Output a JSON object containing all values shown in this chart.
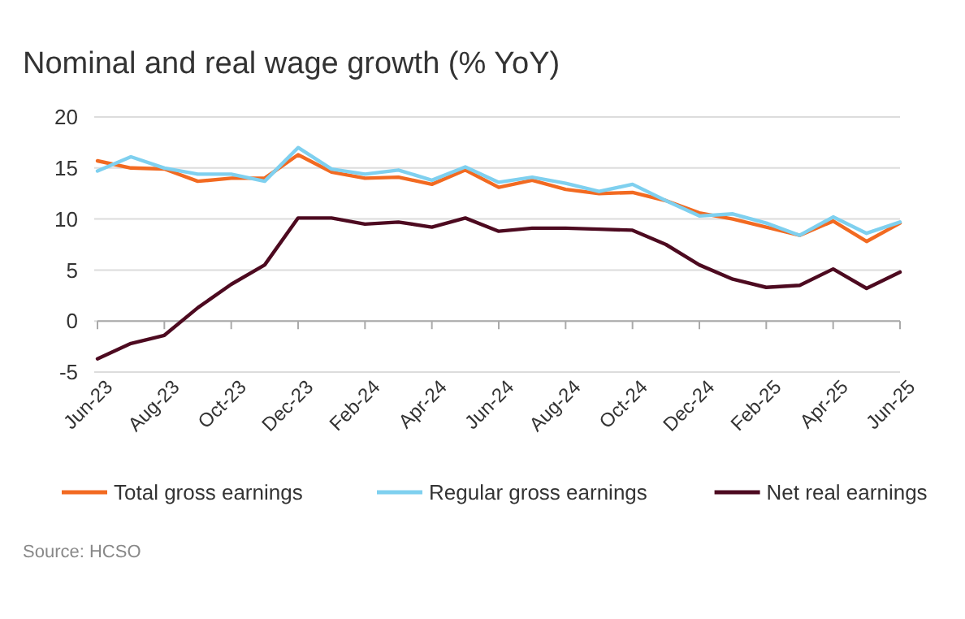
{
  "chart_data": {
    "type": "line",
    "title": "Nominal and real wage growth (% YoY)",
    "categories": [
      "Jun-23",
      null,
      "Aug-23",
      null,
      "Oct-23",
      null,
      "Dec-23",
      null,
      "Feb-24",
      null,
      "Apr-24",
      null,
      "Jun-24",
      null,
      "Aug-24",
      null,
      "Oct-24",
      null,
      "Dec-24",
      null,
      "Feb-25",
      null,
      "Apr-25",
      null,
      "Jun-25"
    ],
    "series": [
      {
        "name": "Total gross earnings",
        "color": "#f26a21",
        "values": [
          15.7,
          15.0,
          14.9,
          13.7,
          14.0,
          14.0,
          16.3,
          14.6,
          14.0,
          14.1,
          13.4,
          14.8,
          13.1,
          13.8,
          12.9,
          12.5,
          12.6,
          11.8,
          10.6,
          10.0,
          9.2,
          8.4,
          9.8,
          7.8,
          9.6
        ]
      },
      {
        "name": "Regular gross earnings",
        "color": "#7fd0ef",
        "values": [
          14.7,
          16.1,
          15.0,
          14.4,
          14.4,
          13.7,
          17.0,
          14.9,
          14.4,
          14.8,
          13.8,
          15.1,
          13.6,
          14.1,
          13.5,
          12.7,
          13.4,
          11.8,
          10.3,
          10.5,
          9.6,
          8.4,
          10.2,
          8.6,
          9.7
        ]
      },
      {
        "name": "Net real earnings",
        "color": "#4d0a20",
        "values": [
          -3.7,
          -2.2,
          -1.4,
          1.3,
          3.6,
          5.5,
          10.1,
          10.1,
          9.5,
          9.7,
          9.2,
          10.1,
          8.8,
          9.1,
          9.1,
          9.0,
          8.9,
          7.5,
          5.5,
          4.1,
          3.3,
          3.5,
          5.1,
          3.2,
          4.8
        ]
      }
    ],
    "ylim": [
      -5,
      20
    ],
    "yticks": [
      -5,
      0,
      5,
      10,
      15,
      20
    ],
    "grid": "y",
    "legend": "bottom",
    "annotations": [
      "Source: HCSO"
    ]
  }
}
